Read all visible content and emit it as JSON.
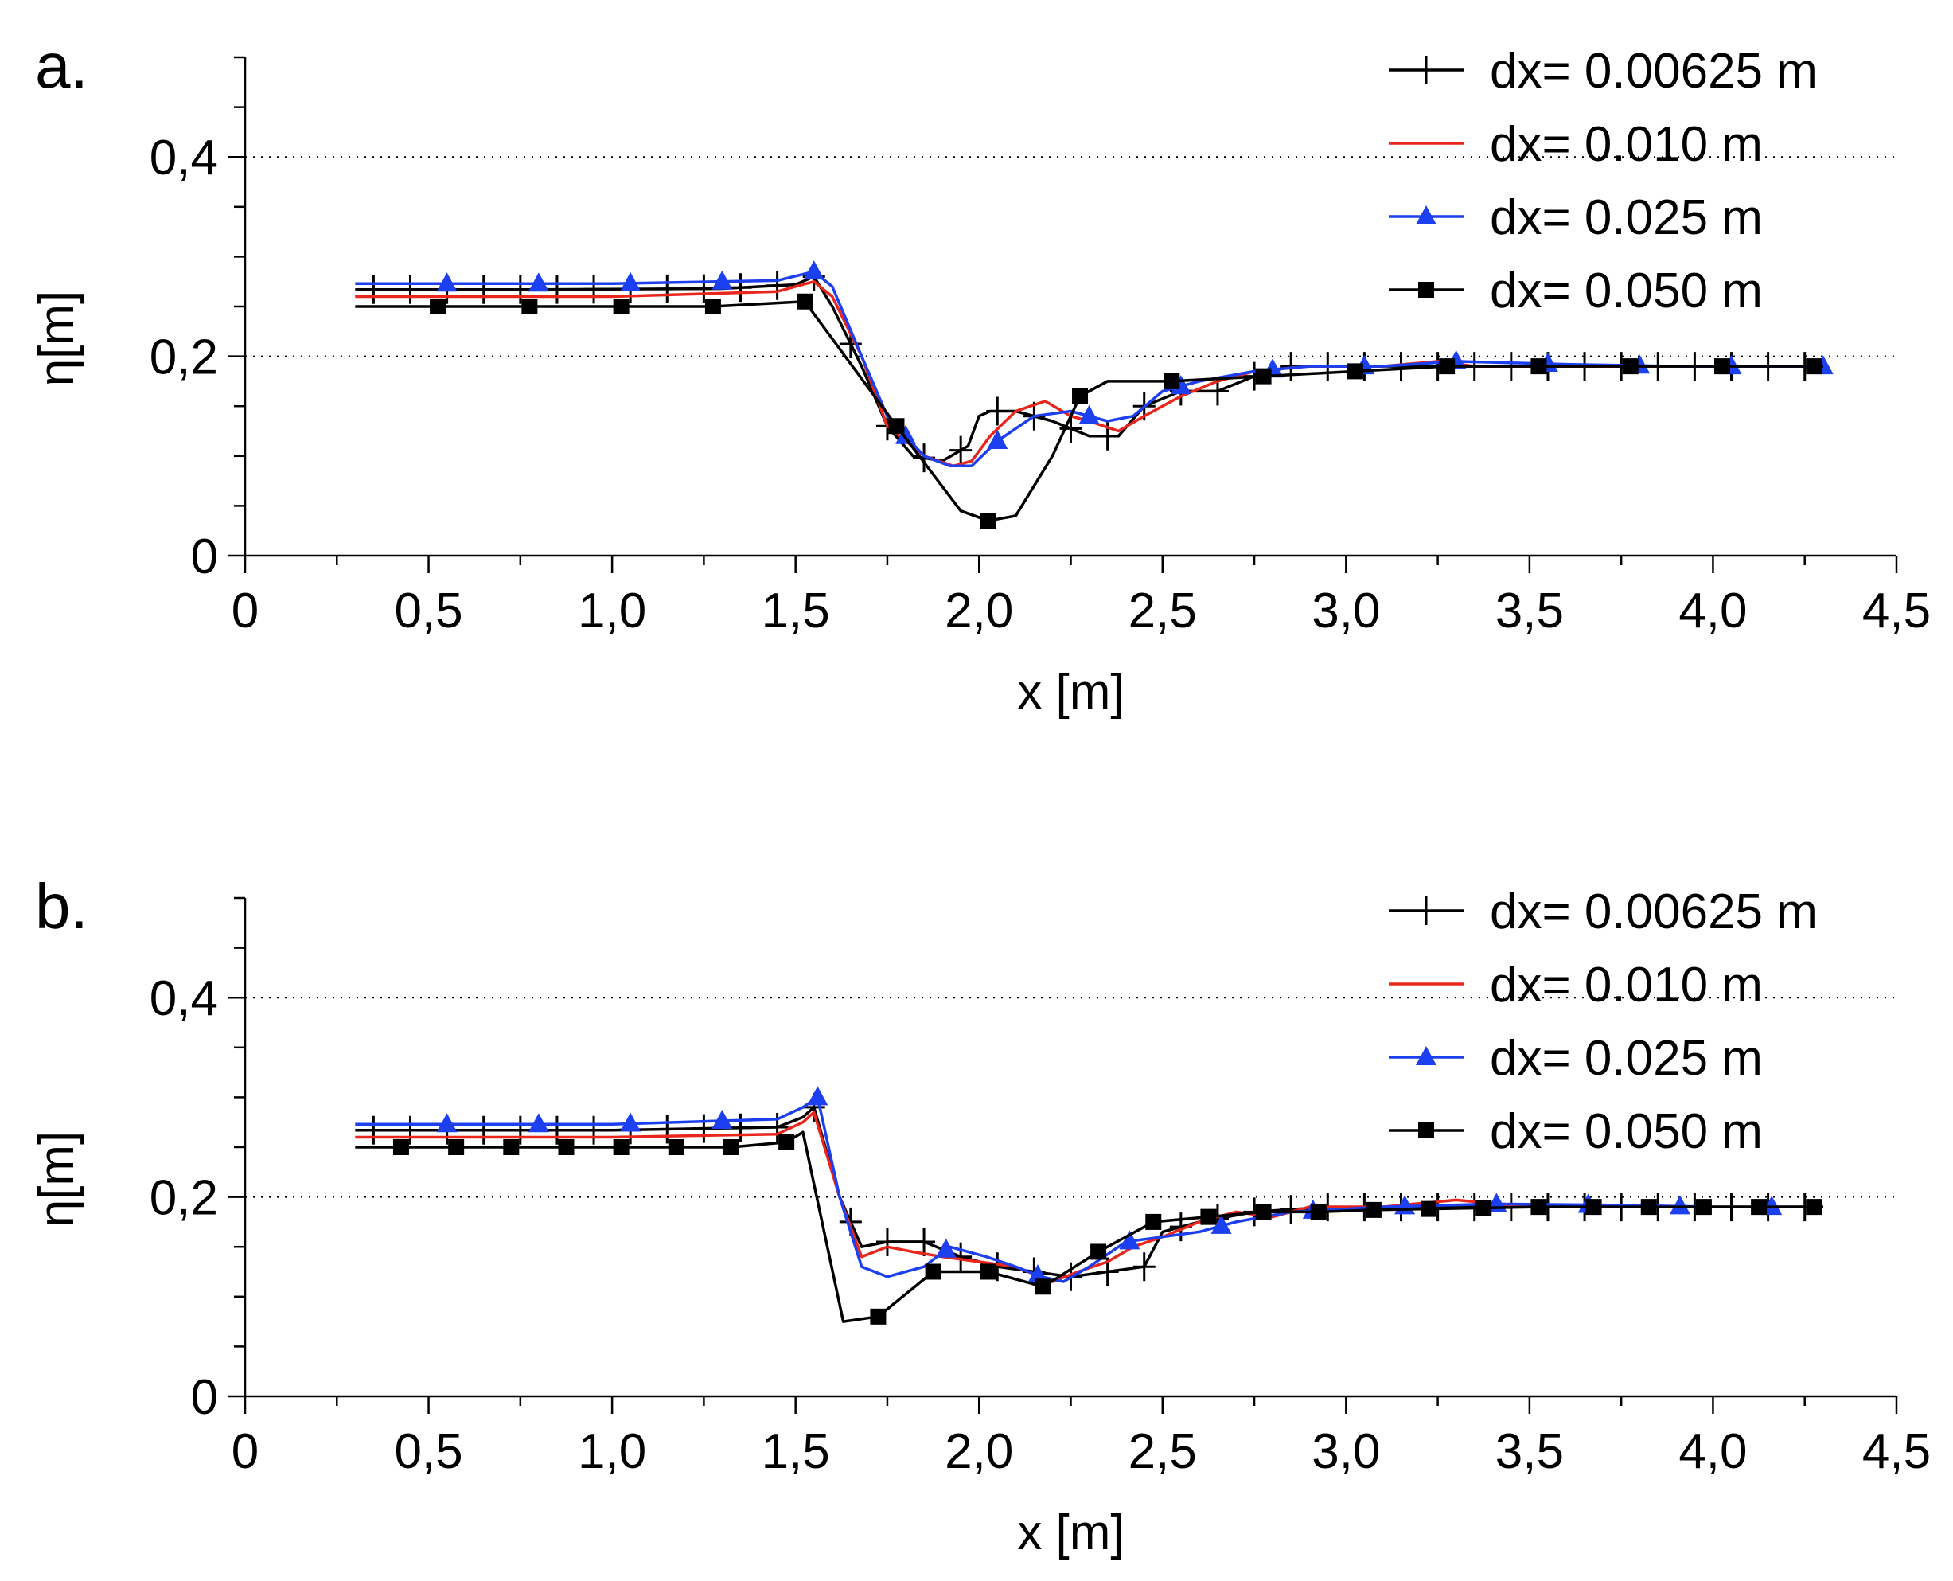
{
  "chart_data": [
    {
      "type": "line",
      "panel_label": "a.",
      "xlabel": "x [m]",
      "ylabel": "η[m]",
      "xlim": [
        0,
        4.5
      ],
      "ylim": [
        0,
        0.5
      ],
      "xticks": [
        "0",
        "0,5",
        "1,0",
        "1,5",
        "2,0",
        "2,5",
        "3,0",
        "3,5",
        "4,0",
        "4,5"
      ],
      "yticks": [
        "0",
        "0,2",
        "0,4"
      ],
      "grid": "dotted horizontal at 0,2 and 0,4",
      "legend_position": "top-right",
      "series": [
        {
          "name": "dx= 0.00625 m",
          "color": "#000000",
          "marker": "plus",
          "x": [
            0.3,
            0.8,
            1.3,
            1.5,
            1.55,
            1.6,
            1.68,
            1.75,
            1.82,
            1.9,
            1.97,
            2.0,
            2.03,
            2.1,
            2.2,
            2.3,
            2.38,
            2.45,
            2.55,
            2.65,
            2.75,
            2.85,
            3.0,
            3.3,
            3.6,
            4.0,
            4.3
          ],
          "y": [
            0.267,
            0.267,
            0.268,
            0.272,
            0.28,
            0.25,
            0.19,
            0.13,
            0.1,
            0.095,
            0.11,
            0.14,
            0.145,
            0.145,
            0.135,
            0.12,
            0.12,
            0.15,
            0.165,
            0.165,
            0.18,
            0.19,
            0.19,
            0.19,
            0.19,
            0.19,
            0.19
          ],
          "marker_x": [
            0.35,
            0.45,
            0.55,
            0.65,
            0.75,
            0.85,
            0.95,
            1.05,
            1.15,
            1.25,
            1.35,
            1.45,
            1.55,
            1.65,
            1.75,
            1.85,
            1.95,
            2.05,
            2.15,
            2.25,
            2.35,
            2.45,
            2.55,
            2.65,
            2.75,
            2.85,
            2.95,
            3.05,
            3.15,
            3.25,
            3.35,
            3.45,
            3.55,
            3.65,
            3.75,
            3.85,
            3.95,
            4.05,
            4.15,
            4.25
          ]
        },
        {
          "name": "dx= 0.010 m",
          "color": "#e8261c",
          "marker": "none",
          "x": [
            0.3,
            1.0,
            1.45,
            1.55,
            1.6,
            1.68,
            1.75,
            1.85,
            1.93,
            1.98,
            2.03,
            2.1,
            2.18,
            2.25,
            2.3,
            2.38,
            2.45,
            2.55,
            2.65,
            2.75,
            2.9,
            3.1,
            3.25,
            3.35,
            3.6,
            3.9,
            4.3
          ],
          "y": [
            0.26,
            0.26,
            0.265,
            0.275,
            0.26,
            0.2,
            0.13,
            0.1,
            0.09,
            0.095,
            0.12,
            0.145,
            0.155,
            0.14,
            0.135,
            0.125,
            0.14,
            0.16,
            0.175,
            0.185,
            0.19,
            0.19,
            0.195,
            0.19,
            0.19,
            0.19,
            0.19
          ]
        },
        {
          "name": "dx= 0.025 m",
          "color": "#1c3ff0",
          "marker": "triangle",
          "x": [
            0.3,
            1.0,
            1.45,
            1.55,
            1.6,
            1.68,
            1.75,
            1.85,
            1.92,
            1.98,
            2.05,
            2.15,
            2.25,
            2.35,
            2.42,
            2.5,
            2.6,
            2.75,
            2.9,
            3.1,
            3.3,
            3.6,
            3.9,
            4.3
          ],
          "y": [
            0.273,
            0.273,
            0.276,
            0.285,
            0.27,
            0.2,
            0.14,
            0.1,
            0.09,
            0.09,
            0.115,
            0.14,
            0.145,
            0.135,
            0.14,
            0.165,
            0.175,
            0.185,
            0.19,
            0.19,
            0.195,
            0.192,
            0.19,
            0.19
          ],
          "marker_x": [
            0.55,
            0.8,
            1.05,
            1.3,
            1.55,
            1.8,
            2.05,
            2.3,
            2.55,
            2.8,
            3.05,
            3.3,
            3.55,
            3.8,
            4.05,
            4.3
          ]
        },
        {
          "name": "dx= 0.050 m",
          "color": "#000000",
          "marker": "square",
          "x": [
            0.3,
            0.525,
            0.775,
            1.025,
            1.275,
            1.525,
            1.775,
            1.95,
            2.025,
            2.1,
            2.2,
            2.275,
            2.35,
            2.525,
            2.775,
            3.025,
            3.275,
            3.525,
            3.775,
            4.025,
            4.3
          ],
          "y": [
            0.25,
            0.25,
            0.25,
            0.25,
            0.25,
            0.255,
            0.13,
            0.045,
            0.035,
            0.04,
            0.1,
            0.16,
            0.175,
            0.175,
            0.18,
            0.185,
            0.19,
            0.19,
            0.19,
            0.19,
            0.19
          ],
          "marker_x": [
            0.525,
            0.775,
            1.025,
            1.275,
            1.525,
            1.775,
            2.025,
            2.275,
            2.525,
            2.775,
            3.025,
            3.275,
            3.525,
            3.775,
            4.025,
            4.275
          ]
        }
      ]
    },
    {
      "type": "line",
      "panel_label": "b.",
      "xlabel": "x [m]",
      "ylabel": "η[m]",
      "xlim": [
        0,
        4.5
      ],
      "ylim": [
        0,
        0.5
      ],
      "xticks": [
        "0",
        "0,5",
        "1,0",
        "1,5",
        "2,0",
        "2,5",
        "3,0",
        "3,5",
        "4,0",
        "4,5"
      ],
      "yticks": [
        "0",
        "0,2",
        "0,4"
      ],
      "grid": "dotted horizontal at 0,2 and 0,4",
      "legend_position": "top-right",
      "series": [
        {
          "name": "dx= 0.00625 m",
          "color": "#000000",
          "marker": "plus",
          "x": [
            0.3,
            1.0,
            1.45,
            1.52,
            1.55,
            1.62,
            1.68,
            1.75,
            1.85,
            1.95,
            2.05,
            2.15,
            2.25,
            2.35,
            2.45,
            2.5,
            2.6,
            2.75,
            2.95,
            3.2,
            3.5,
            3.9,
            4.3
          ],
          "y": [
            0.267,
            0.267,
            0.27,
            0.28,
            0.29,
            0.2,
            0.15,
            0.155,
            0.155,
            0.14,
            0.13,
            0.125,
            0.12,
            0.125,
            0.13,
            0.165,
            0.175,
            0.185,
            0.19,
            0.19,
            0.19,
            0.19,
            0.19
          ],
          "marker_x": [
            0.35,
            0.45,
            0.55,
            0.65,
            0.75,
            0.85,
            0.95,
            1.05,
            1.15,
            1.25,
            1.35,
            1.45,
            1.55,
            1.65,
            1.75,
            1.85,
            1.95,
            2.05,
            2.15,
            2.25,
            2.35,
            2.45,
            2.55,
            2.65,
            2.75,
            2.85,
            2.95,
            3.05,
            3.15,
            3.25,
            3.35,
            3.45,
            3.55,
            3.65,
            3.75,
            3.85,
            3.95,
            4.05,
            4.15,
            4.25
          ]
        },
        {
          "name": "dx= 0.010 m",
          "color": "#e8261c",
          "marker": "none",
          "x": [
            0.3,
            1.0,
            1.45,
            1.52,
            1.55,
            1.62,
            1.68,
            1.75,
            1.82,
            1.9,
            2.0,
            2.1,
            2.2,
            2.27,
            2.35,
            2.42,
            2.5,
            2.6,
            2.7,
            2.8,
            2.9,
            3.1,
            3.3,
            3.5,
            3.9,
            4.3
          ],
          "y": [
            0.26,
            0.26,
            0.263,
            0.275,
            0.285,
            0.2,
            0.14,
            0.15,
            0.145,
            0.14,
            0.135,
            0.13,
            0.115,
            0.125,
            0.135,
            0.15,
            0.16,
            0.175,
            0.185,
            0.18,
            0.19,
            0.19,
            0.197,
            0.19,
            0.19,
            0.19
          ]
        },
        {
          "name": "dx= 0.025 m",
          "color": "#1c3ff0",
          "marker": "triangle",
          "x": [
            0.3,
            1.0,
            1.45,
            1.52,
            1.56,
            1.62,
            1.68,
            1.75,
            1.85,
            1.92,
            2.02,
            2.1,
            2.17,
            2.23,
            2.3,
            2.4,
            2.5,
            2.6,
            2.7,
            2.85,
            3.1,
            3.4,
            3.7,
            4.0,
            4.3
          ],
          "y": [
            0.273,
            0.273,
            0.278,
            0.29,
            0.3,
            0.2,
            0.13,
            0.12,
            0.13,
            0.15,
            0.14,
            0.13,
            0.12,
            0.115,
            0.13,
            0.155,
            0.16,
            0.165,
            0.175,
            0.185,
            0.19,
            0.193,
            0.192,
            0.19,
            0.19
          ],
          "marker_x": [
            0.55,
            0.8,
            1.05,
            1.3,
            1.56,
            1.91,
            2.16,
            2.41,
            2.66,
            2.91,
            3.16,
            3.41,
            3.66,
            3.91,
            4.16
          ]
        },
        {
          "name": "dx= 0.050 m",
          "color": "#000000",
          "marker": "square",
          "x": [
            0.3,
            0.425,
            0.575,
            0.725,
            0.875,
            1.025,
            1.175,
            1.325,
            1.475,
            1.52,
            1.63,
            1.725,
            1.875,
            2.025,
            2.175,
            2.325,
            2.475,
            2.625,
            2.775,
            2.925,
            3.075,
            3.225,
            3.375,
            3.525,
            3.675,
            3.825,
            3.975,
            4.125,
            4.3
          ],
          "y": [
            0.25,
            0.25,
            0.25,
            0.25,
            0.25,
            0.25,
            0.25,
            0.25,
            0.255,
            0.265,
            0.075,
            0.08,
            0.125,
            0.125,
            0.11,
            0.145,
            0.175,
            0.18,
            0.185,
            0.185,
            0.187,
            0.188,
            0.189,
            0.19,
            0.19,
            0.19,
            0.19,
            0.19,
            0.19
          ],
          "marker_x": [
            0.425,
            0.575,
            0.725,
            0.875,
            1.025,
            1.175,
            1.325,
            1.475,
            1.725,
            1.875,
            2.025,
            2.175,
            2.325,
            2.475,
            2.625,
            2.775,
            2.925,
            3.075,
            3.225,
            3.375,
            3.525,
            3.675,
            3.825,
            3.975,
            4.125,
            4.275
          ]
        }
      ]
    }
  ]
}
